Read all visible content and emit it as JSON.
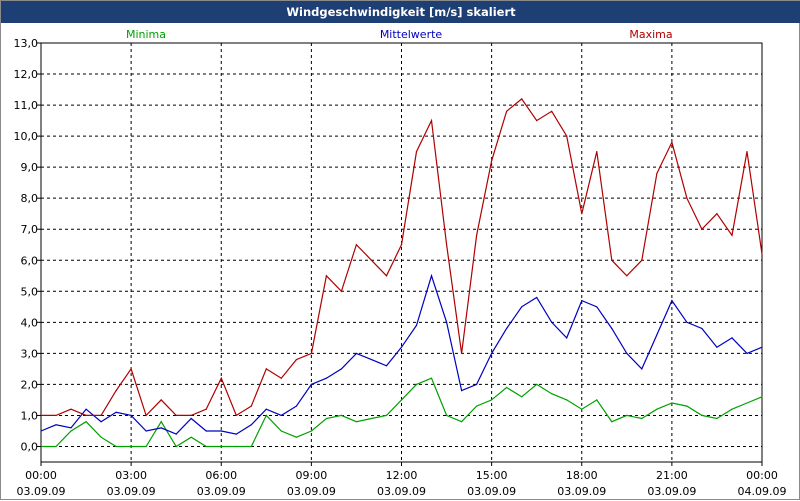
{
  "window": {
    "title": "Windgeschwindigkeit [m/s] skaliert"
  },
  "chart_data": {
    "type": "line",
    "title": "Windgeschwindigkeit [m/s] skaliert",
    "ylim": [
      -0.5,
      13.0
    ],
    "yticks": [
      "13,0",
      "12,0",
      "11,0",
      "10,0",
      "9,0",
      "8,0",
      "7,0",
      "6,0",
      "5,0",
      "4,0",
      "3,0",
      "2,0",
      "1,0",
      "0,0"
    ],
    "ytick_values": [
      13,
      12,
      11,
      10,
      9,
      8,
      7,
      6,
      5,
      4,
      3,
      2,
      1,
      0
    ],
    "xlim": [
      0,
      24
    ],
    "xticks": [
      {
        "time": "00:00",
        "date": "03.09.09",
        "hour": 0
      },
      {
        "time": "03:00",
        "date": "03.09.09",
        "hour": 3
      },
      {
        "time": "06:00",
        "date": "03.09.09",
        "hour": 6
      },
      {
        "time": "09:00",
        "date": "03.09.09",
        "hour": 9
      },
      {
        "time": "12:00",
        "date": "03.09.09",
        "hour": 12
      },
      {
        "time": "15:00",
        "date": "03.09.09",
        "hour": 15
      },
      {
        "time": "18:00",
        "date": "03.09.09",
        "hour": 18
      },
      {
        "time": "21:00",
        "date": "03.09.09",
        "hour": 21
      },
      {
        "time": "00:00",
        "date": "04.09.09",
        "hour": 24
      }
    ],
    "grid": true,
    "x": [
      0,
      0.5,
      1,
      1.5,
      2,
      2.5,
      3,
      3.5,
      4,
      4.5,
      5,
      5.5,
      6,
      6.5,
      7,
      7.5,
      8,
      8.5,
      9,
      9.5,
      10,
      10.5,
      11,
      11.5,
      12,
      12.5,
      13,
      13.5,
      14,
      14.5,
      15,
      15.5,
      16,
      16.5,
      17,
      17.5,
      18,
      18.5,
      19,
      19.5,
      20,
      20.5,
      21,
      21.5,
      22,
      22.5,
      23,
      23.5,
      24
    ],
    "series": [
      {
        "name": "Minima",
        "color": "#00a000",
        "values": [
          0.0,
          0.0,
          0.5,
          0.8,
          0.3,
          0.0,
          0.0,
          0.0,
          0.8,
          0.0,
          0.3,
          0.0,
          0.0,
          0.0,
          0.0,
          1.0,
          0.5,
          0.3,
          0.5,
          0.9,
          1.0,
          0.8,
          0.9,
          1.0,
          1.5,
          2.0,
          2.2,
          1.0,
          0.8,
          1.3,
          1.5,
          1.9,
          1.6,
          2.0,
          1.7,
          1.5,
          1.2,
          1.5,
          0.8,
          1.0,
          0.9,
          1.2,
          1.4,
          1.3,
          1.0,
          0.9,
          1.2,
          1.4,
          1.6
        ]
      },
      {
        "name": "Mittelwerte",
        "color": "#0000c0",
        "values": [
          0.5,
          0.7,
          0.6,
          1.2,
          0.8,
          1.1,
          1.0,
          0.5,
          0.6,
          0.4,
          0.9,
          0.5,
          0.5,
          0.4,
          0.7,
          1.2,
          1.0,
          1.3,
          2.0,
          2.2,
          2.5,
          3.0,
          2.8,
          2.6,
          3.2,
          3.9,
          5.5,
          4.0,
          1.8,
          2.0,
          3.0,
          3.8,
          4.5,
          4.8,
          4.0,
          3.5,
          4.7,
          4.5,
          3.8,
          3.0,
          2.5,
          3.6,
          4.7,
          4.0,
          3.8,
          3.2,
          3.5,
          3.0,
          3.2
        ]
      },
      {
        "name": "Maxima",
        "color": "#b00000",
        "values": [
          1.0,
          1.0,
          1.2,
          1.0,
          1.0,
          1.8,
          2.5,
          1.0,
          1.5,
          1.0,
          1.0,
          1.2,
          2.2,
          1.0,
          1.3,
          2.5,
          2.2,
          2.8,
          3.0,
          5.5,
          5.0,
          6.5,
          6.0,
          5.5,
          6.5,
          9.5,
          10.5,
          6.5,
          3.0,
          6.8,
          9.2,
          10.8,
          11.2,
          10.5,
          10.8,
          10.0,
          7.5,
          9.5,
          6.0,
          5.5,
          6.0,
          8.8,
          9.8,
          8.0,
          7.0,
          7.5,
          6.8,
          9.5,
          6.2
        ]
      }
    ]
  }
}
